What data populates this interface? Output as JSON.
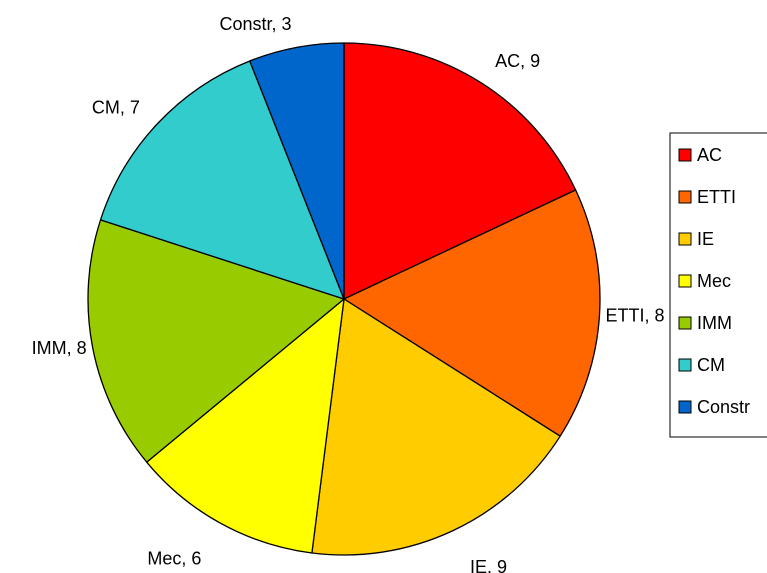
{
  "chart_data": {
    "type": "pie",
    "categories": [
      "AC",
      "ETTI",
      "IE",
      "Mec",
      "IMM",
      "CM",
      "Constr"
    ],
    "values": [
      9,
      8,
      9,
      6,
      8,
      7,
      3
    ],
    "data_labels": [
      "AC, 9",
      "ETTI, 8",
      "IE, 9",
      "Mec, 6",
      "IMM, 8",
      "CM, 7",
      "Constr, 3"
    ],
    "colors": [
      "#ff0000",
      "#ff6600",
      "#ffcc00",
      "#ffff00",
      "#99cc00",
      "#33cccc",
      "#0066cc"
    ],
    "legend": {
      "placement": "right",
      "entries": [
        "AC",
        "ETTI",
        "IE",
        "Mec",
        "IMM",
        "CM",
        "Constr"
      ]
    }
  }
}
